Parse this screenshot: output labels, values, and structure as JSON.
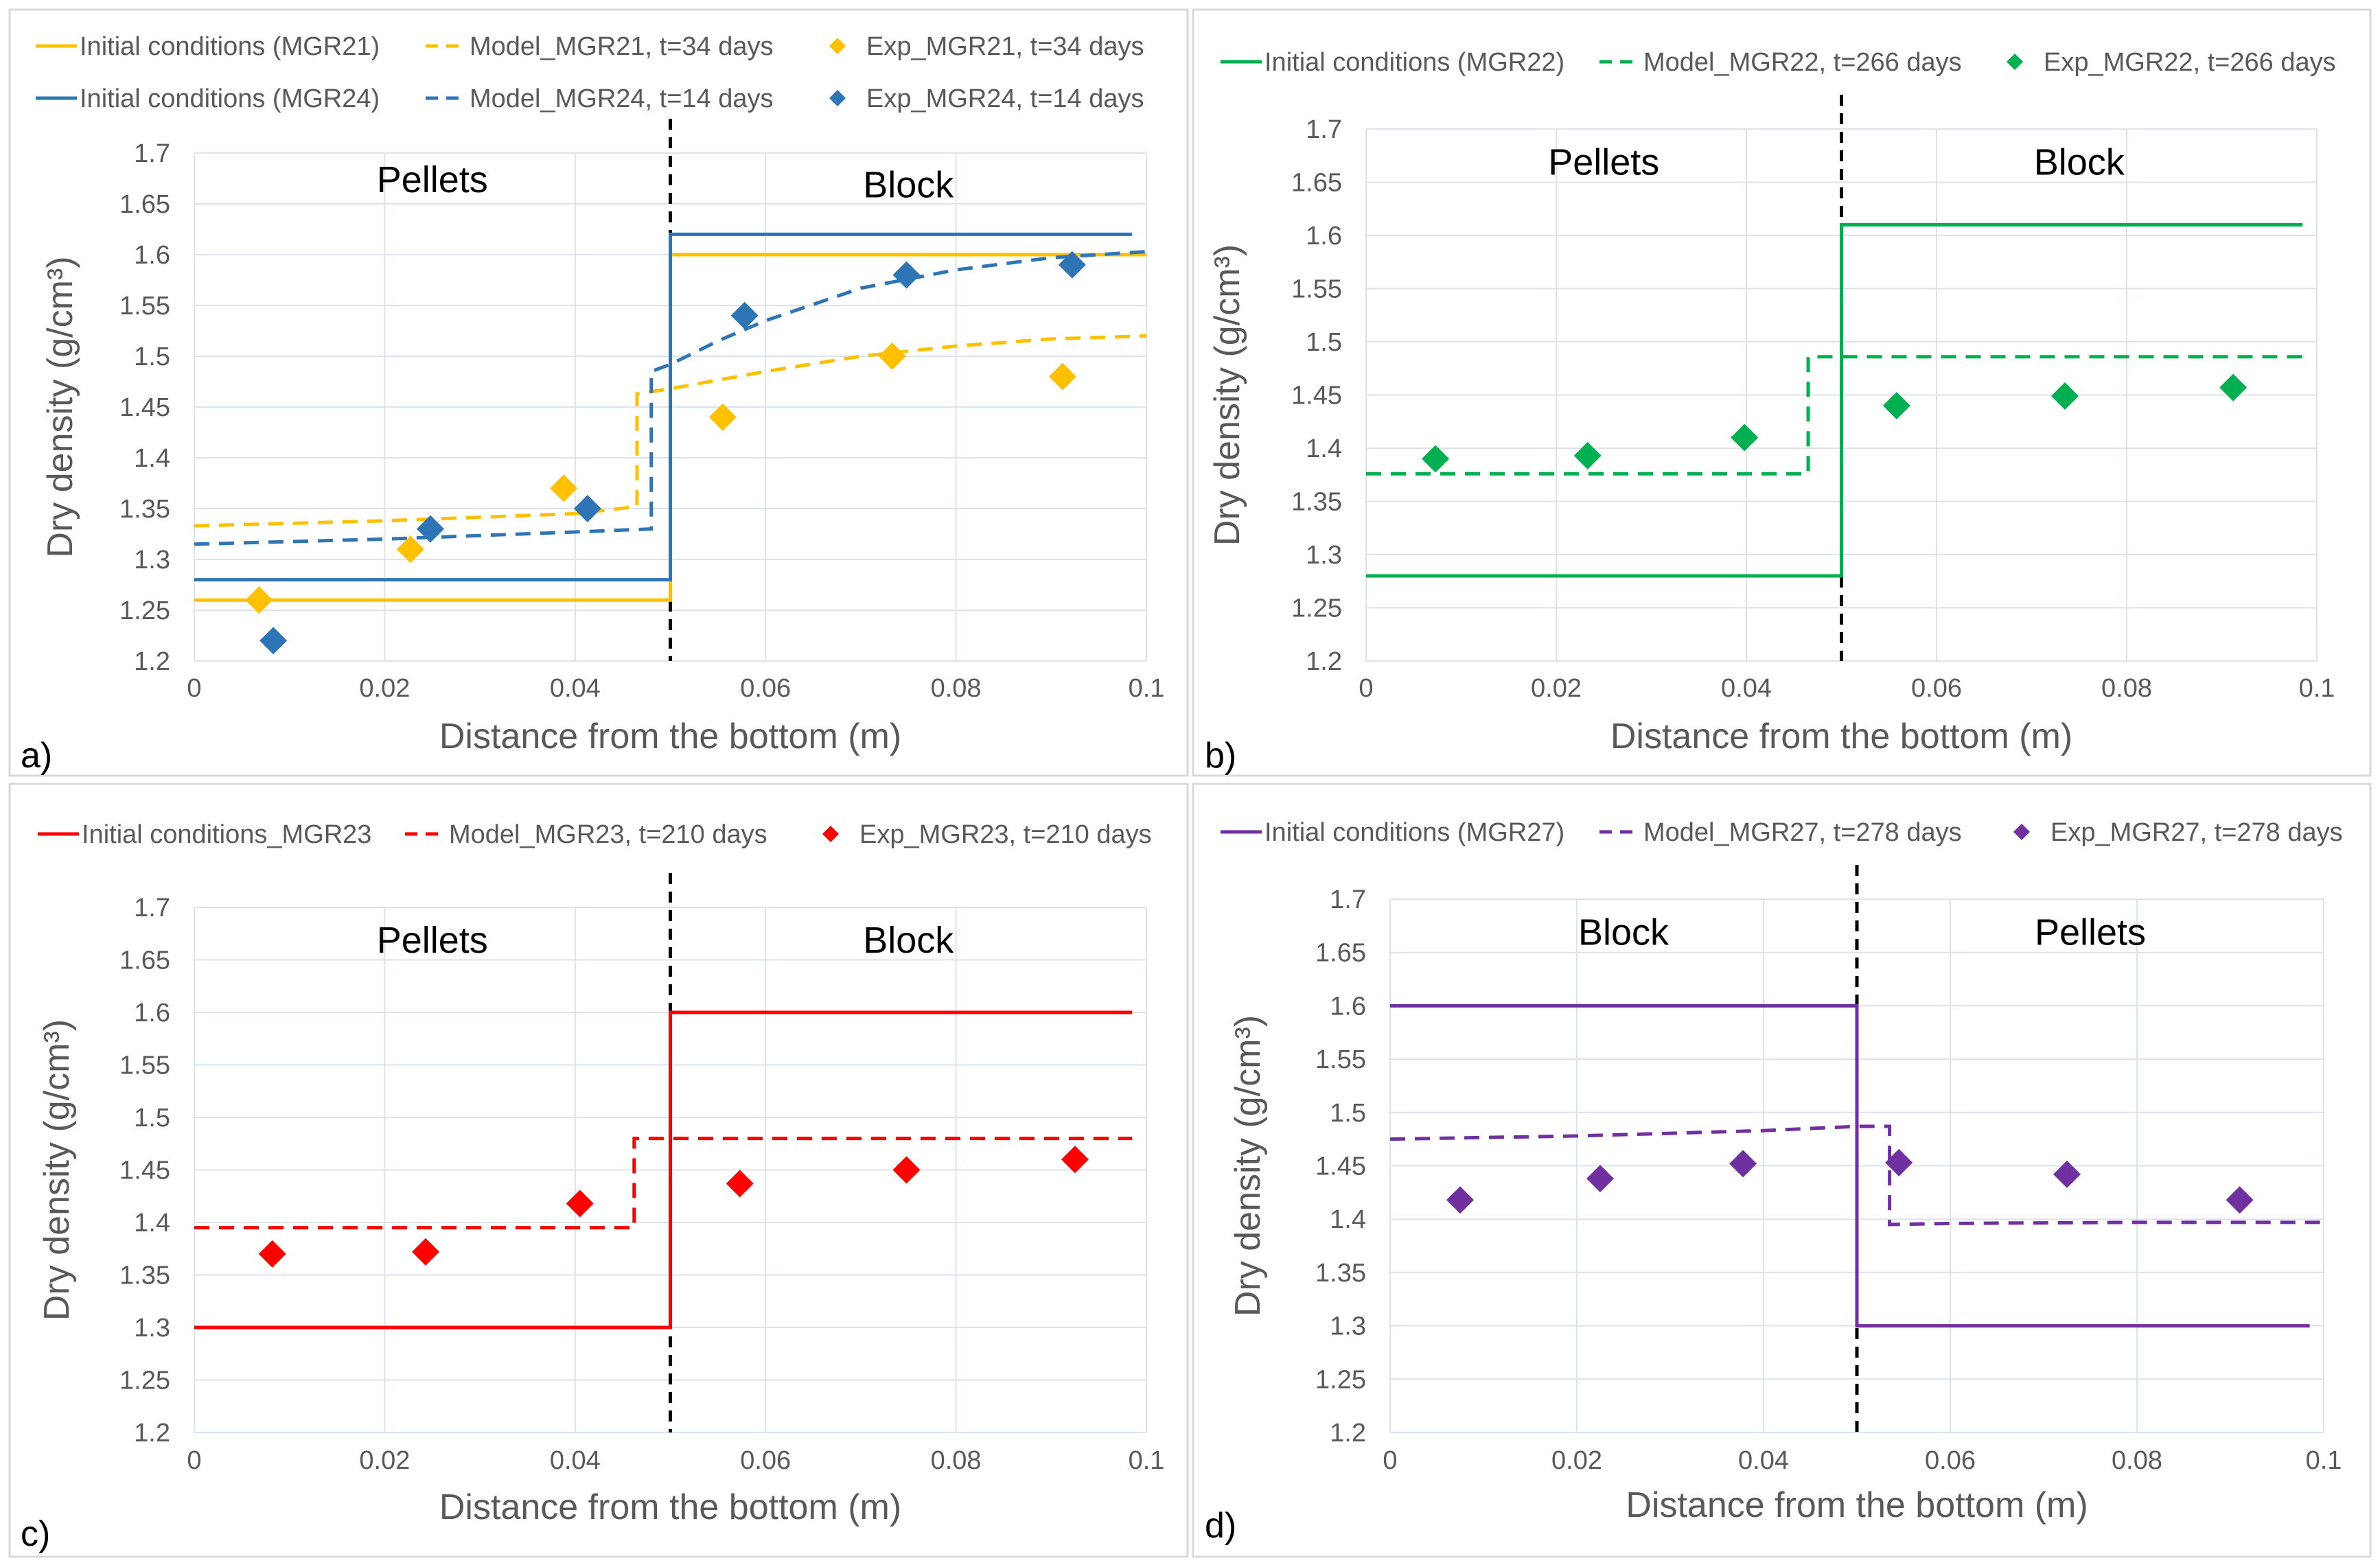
{
  "figure": {
    "panel_border": "#d9d9d9",
    "grid_color": "#dce3ec",
    "text_color": "#595959",
    "title_color": "#000000"
  },
  "chart_data": [
    {
      "type": "line",
      "panel_label": "a)",
      "xlabel": "Distance from the bottom  (m)",
      "ylabel": "Dry density  (g/cm³)",
      "xlim": [
        0,
        0.1
      ],
      "ylim": [
        1.2,
        1.7
      ],
      "xticks": [
        0,
        0.02,
        0.04,
        0.06,
        0.08,
        0.1
      ],
      "xtick_labels": [
        "0",
        "0.02",
        "0.04",
        "0.06",
        "0.08",
        "0.1"
      ],
      "yticks": [
        1.2,
        1.25,
        1.3,
        1.35,
        1.4,
        1.45,
        1.5,
        1.55,
        1.6,
        1.65,
        1.7
      ],
      "ytick_labels": [
        "1.2",
        "1.25",
        "1.3",
        "1.35",
        "1.4",
        "1.45",
        "1.5",
        "1.55",
        "1.6",
        "1.65",
        "1.7"
      ],
      "interface_x": 0.05,
      "zone_labels": [
        {
          "text": "Pellets",
          "x": 0.025,
          "y": 1.675
        },
        {
          "text": "Block",
          "x": 0.075,
          "y": 1.67
        }
      ],
      "legend_rows": [
        [
          "Initial conditions (MGR21)",
          "Model_MGR21, t=34 days",
          "Exp_MGR21, t=34 days"
        ],
        [
          "Initial conditions (MGR24)",
          "Model_MGR24, t=14 days",
          "Exp_MGR24, t=14 days"
        ]
      ],
      "series": [
        {
          "name": "Initial conditions (MGR21)",
          "style": "solid",
          "color": "#ffc000",
          "x": [
            0,
            0.05,
            0.05,
            0.1
          ],
          "y": [
            1.26,
            1.26,
            1.6,
            1.6
          ]
        },
        {
          "name": "Initial conditions (MGR24)",
          "style": "solid",
          "color": "#2e75b6",
          "x": [
            0,
            0.05,
            0.05,
            0.0985
          ],
          "y": [
            1.28,
            1.28,
            1.62,
            1.62
          ]
        },
        {
          "name": "Model_MGR21, t=34 days",
          "style": "dashed",
          "color": "#ffc000",
          "x": [
            0,
            0.02,
            0.04,
            0.0465,
            0.0465,
            0.05,
            0.06,
            0.07,
            0.08,
            0.09,
            0.1
          ],
          "y": [
            1.333,
            1.338,
            1.345,
            1.352,
            1.463,
            1.468,
            1.485,
            1.5,
            1.51,
            1.517,
            1.52
          ]
        },
        {
          "name": "Model_MGR24, t=14 days",
          "style": "dashed",
          "color": "#2e75b6",
          "x": [
            0,
            0.02,
            0.04,
            0.048,
            0.048,
            0.05,
            0.055,
            0.06,
            0.07,
            0.08,
            0.09,
            0.1
          ],
          "y": [
            1.315,
            1.32,
            1.327,
            1.33,
            1.485,
            1.492,
            1.515,
            1.535,
            1.567,
            1.585,
            1.597,
            1.603
          ]
        },
        {
          "name": "Exp_MGR21, t=34 days",
          "style": "marker",
          "color": "#ffc000",
          "x": [
            0.0068,
            0.0227,
            0.0388,
            0.0555,
            0.0733,
            0.0912
          ],
          "y": [
            1.26,
            1.31,
            1.37,
            1.44,
            1.5,
            1.48
          ]
        },
        {
          "name": "Exp_MGR24, t=14 days",
          "style": "marker",
          "color": "#2e75b6",
          "x": [
            0.0083,
            0.0248,
            0.0413,
            0.0578,
            0.0748,
            0.0922
          ],
          "y": [
            1.22,
            1.33,
            1.35,
            1.54,
            1.58,
            1.59
          ]
        }
      ]
    },
    {
      "type": "line",
      "panel_label": "b)",
      "xlabel": "Distance from the bottom  (m)",
      "ylabel": "Dry density  (g/cm³)",
      "xlim": [
        0,
        0.1
      ],
      "ylim": [
        1.2,
        1.7
      ],
      "xticks": [
        0,
        0.02,
        0.04,
        0.06,
        0.08,
        0.1
      ],
      "xtick_labels": [
        "0",
        "0.02",
        "0.04",
        "0.06",
        "0.08",
        "0.1"
      ],
      "yticks": [
        1.2,
        1.25,
        1.3,
        1.35,
        1.4,
        1.45,
        1.5,
        1.55,
        1.6,
        1.65,
        1.7
      ],
      "ytick_labels": [
        "1.2",
        "1.25",
        "1.3",
        "1.35",
        "1.4",
        "1.45",
        "1.5",
        "1.55",
        "1.6",
        "1.65",
        "1.7"
      ],
      "interface_x": 0.05,
      "zone_labels": [
        {
          "text": "Pellets",
          "x": 0.025,
          "y": 1.67
        },
        {
          "text": "Block",
          "x": 0.075,
          "y": 1.67
        }
      ],
      "legend_rows": [
        [
          "Initial conditions (MGR22)",
          "Model_MGR22, t=266 days",
          "Exp_MGR22, t=266 days"
        ]
      ],
      "series": [
        {
          "name": "Initial conditions (MGR22)",
          "style": "solid",
          "color": "#00b050",
          "x": [
            0,
            0.05,
            0.05,
            0.0985
          ],
          "y": [
            1.28,
            1.28,
            1.61,
            1.61
          ]
        },
        {
          "name": "Model_MGR22, t=266 days",
          "style": "dashed",
          "color": "#00b050",
          "x": [
            0,
            0.0465,
            0.0465,
            0.0985
          ],
          "y": [
            1.376,
            1.376,
            1.486,
            1.486
          ]
        },
        {
          "name": "Exp_MGR22, t=266 days",
          "style": "marker",
          "color": "#00b050",
          "x": [
            0.0073,
            0.0233,
            0.0398,
            0.0558,
            0.0735,
            0.0912
          ],
          "y": [
            1.39,
            1.393,
            1.41,
            1.44,
            1.449,
            1.457
          ]
        }
      ]
    },
    {
      "type": "line",
      "panel_label": "c)",
      "xlabel": "Distance from the bottom  (m)",
      "ylabel": "Dry density  (g/cm³)",
      "xlim": [
        0,
        0.1
      ],
      "ylim": [
        1.2,
        1.7
      ],
      "xticks": [
        0,
        0.02,
        0.04,
        0.06,
        0.08,
        0.1
      ],
      "xtick_labels": [
        "0",
        "0.02",
        "0.04",
        "0.06",
        "0.08",
        "0.1"
      ],
      "yticks": [
        1.2,
        1.25,
        1.3,
        1.35,
        1.4,
        1.45,
        1.5,
        1.55,
        1.6,
        1.65,
        1.7
      ],
      "ytick_labels": [
        "1.2",
        "1.25",
        "1.3",
        "1.35",
        "1.4",
        "1.45",
        "1.5",
        "1.55",
        "1.6",
        "1.65",
        "1.7"
      ],
      "interface_x": 0.05,
      "zone_labels": [
        {
          "text": "Pellets",
          "x": 0.025,
          "y": 1.67
        },
        {
          "text": "Block",
          "x": 0.075,
          "y": 1.67
        }
      ],
      "legend_rows": [
        [
          "Initial conditions_MGR23",
          "Model_MGR23, t=210 days",
          "Exp_MGR23, t=210 days"
        ]
      ],
      "series": [
        {
          "name": "Initial conditions_MGR23",
          "style": "solid",
          "color": "#ff0000",
          "x": [
            0,
            0.05,
            0.05,
            0.0985
          ],
          "y": [
            1.3,
            1.3,
            1.6,
            1.6
          ]
        },
        {
          "name": "Model_MGR23, t=210 days",
          "style": "dashed",
          "color": "#ff0000",
          "x": [
            0,
            0.0462,
            0.0462,
            0.0985
          ],
          "y": [
            1.395,
            1.395,
            1.48,
            1.48
          ]
        },
        {
          "name": "Exp_MGR23, t=210 days",
          "style": "marker",
          "color": "#ff0000",
          "x": [
            0.0082,
            0.0243,
            0.0405,
            0.0573,
            0.0748,
            0.0925
          ],
          "y": [
            1.37,
            1.372,
            1.418,
            1.437,
            1.45,
            1.46
          ]
        }
      ]
    },
    {
      "type": "line",
      "panel_label": "d)",
      "xlabel": "Distance from the bottom  (m)",
      "ylabel": "Dry density  (g/cm³)",
      "xlim": [
        0,
        0.1
      ],
      "ylim": [
        1.2,
        1.7
      ],
      "xticks": [
        0,
        0.02,
        0.04,
        0.06,
        0.08,
        0.1
      ],
      "xtick_labels": [
        "0",
        "0.02",
        "0.04",
        "0.06",
        "0.08",
        "0.1"
      ],
      "yticks": [
        1.2,
        1.25,
        1.3,
        1.35,
        1.4,
        1.45,
        1.5,
        1.55,
        1.6,
        1.65,
        1.7
      ],
      "ytick_labels": [
        "1.2",
        "1.25",
        "1.3",
        "1.35",
        "1.4",
        "1.45",
        "1.5",
        "1.55",
        "1.6",
        "1.65",
        "1.7"
      ],
      "interface_x": 0.05,
      "zone_labels": [
        {
          "text": "Block",
          "x": 0.025,
          "y": 1.67
        },
        {
          "text": "Pellets",
          "x": 0.075,
          "y": 1.67
        }
      ],
      "legend_rows": [
        [
          "Initial conditions (MGR27)",
          "Model_MGR27, t=278 days",
          "Exp_MGR27, t=278 days"
        ]
      ],
      "series": [
        {
          "name": "Initial conditions (MGR27)",
          "style": "solid",
          "color": "#7030a0",
          "x": [
            0,
            0.05,
            0.05,
            0.0985
          ],
          "y": [
            1.6,
            1.6,
            1.3,
            1.3
          ]
        },
        {
          "name": "Model_MGR27, t=278 days",
          "style": "dashed",
          "color": "#7030a0",
          "x": [
            0,
            0.02,
            0.04,
            0.05,
            0.0535,
            0.0535,
            0.06,
            0.08,
            0.1
          ],
          "y": [
            1.475,
            1.478,
            1.483,
            1.487,
            1.487,
            1.395,
            1.396,
            1.397,
            1.397
          ]
        },
        {
          "name": "Exp_MGR27, t=278 days",
          "style": "marker",
          "color": "#7030a0",
          "x": [
            0.0075,
            0.0225,
            0.0378,
            0.0545,
            0.0725,
            0.091
          ],
          "y": [
            1.418,
            1.438,
            1.452,
            1.453,
            1.442,
            1.418
          ]
        }
      ]
    }
  ]
}
